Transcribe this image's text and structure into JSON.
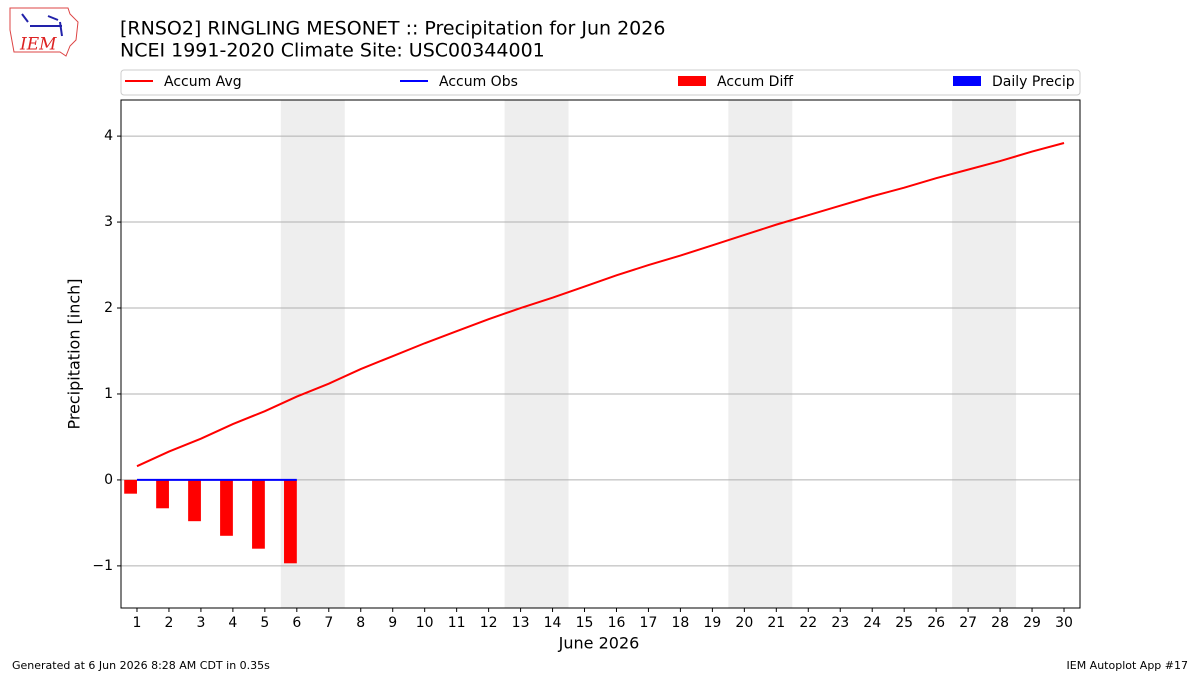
{
  "chart_data": {
    "type": "combo",
    "title": "[RNSO2] RINGLING MESONET :: Precipitation for Jun 2026",
    "subtitle": "NCEI 1991-2020 Climate Site: USC00344001",
    "xlabel": "June 2026",
    "ylabel": "Precipitation [inch]",
    "logo_text": "IEM",
    "footer_left": "Generated at 6 Jun 2026 8:28 AM CDT in 0.35s",
    "footer_right": "IEM Autoplot App #17",
    "x": [
      1,
      2,
      3,
      4,
      5,
      6,
      7,
      8,
      9,
      10,
      11,
      12,
      13,
      14,
      15,
      16,
      17,
      18,
      19,
      20,
      21,
      22,
      23,
      24,
      25,
      26,
      27,
      28,
      29,
      30
    ],
    "xlim": [
      0.5,
      30.5
    ],
    "xticks": [
      1,
      2,
      3,
      4,
      5,
      6,
      7,
      8,
      9,
      10,
      11,
      12,
      13,
      14,
      15,
      16,
      17,
      18,
      19,
      20,
      21,
      22,
      23,
      24,
      25,
      26,
      27,
      28,
      29,
      30
    ],
    "ylim": [
      -1.49,
      4.42
    ],
    "yticks": [
      {
        "value": -1,
        "label": "−1"
      },
      0,
      1,
      2,
      3,
      4
    ],
    "grid": true,
    "legend": "upper center",
    "weekend_spans": [
      [
        5.5,
        7.5
      ],
      [
        12.5,
        14.5
      ],
      [
        19.5,
        21.5
      ],
      [
        26.5,
        28.5
      ]
    ],
    "series": [
      {
        "name": "Accum Avg",
        "color": "#ff0000",
        "mark": "line",
        "values": [
          0.16,
          0.33,
          0.48,
          0.65,
          0.8,
          0.97,
          1.12,
          1.29,
          1.44,
          1.59,
          1.73,
          1.87,
          2.0,
          2.12,
          2.25,
          2.38,
          2.5,
          2.61,
          2.73,
          2.85,
          2.97,
          3.08,
          3.19,
          3.3,
          3.4,
          3.51,
          3.61,
          3.71,
          3.82,
          3.92
        ]
      },
      {
        "name": "Accum Obs",
        "color": "#0000ff",
        "mark": "line",
        "values": [
          0,
          0,
          0,
          0,
          0,
          0,
          null,
          null,
          null,
          null,
          null,
          null,
          null,
          null,
          null,
          null,
          null,
          null,
          null,
          null,
          null,
          null,
          null,
          null,
          null,
          null,
          null,
          null,
          null,
          null
        ]
      },
      {
        "name": "Accum Diff",
        "color": "#ff0000",
        "mark": "bar",
        "offset": "left",
        "values": [
          -0.16,
          -0.33,
          -0.48,
          -0.65,
          -0.8,
          -0.97,
          null,
          null,
          null,
          null,
          null,
          null,
          null,
          null,
          null,
          null,
          null,
          null,
          null,
          null,
          null,
          null,
          null,
          null,
          null,
          null,
          null,
          null,
          null,
          null
        ]
      },
      {
        "name": "Daily Precip",
        "color": "#0000ff",
        "mark": "bar",
        "offset": "right",
        "values": [
          0,
          0,
          0,
          0,
          0,
          0,
          null,
          null,
          null,
          null,
          null,
          null,
          null,
          null,
          null,
          null,
          null,
          null,
          null,
          null,
          null,
          null,
          null,
          null,
          null,
          null,
          null,
          null,
          null,
          null
        ]
      }
    ]
  }
}
